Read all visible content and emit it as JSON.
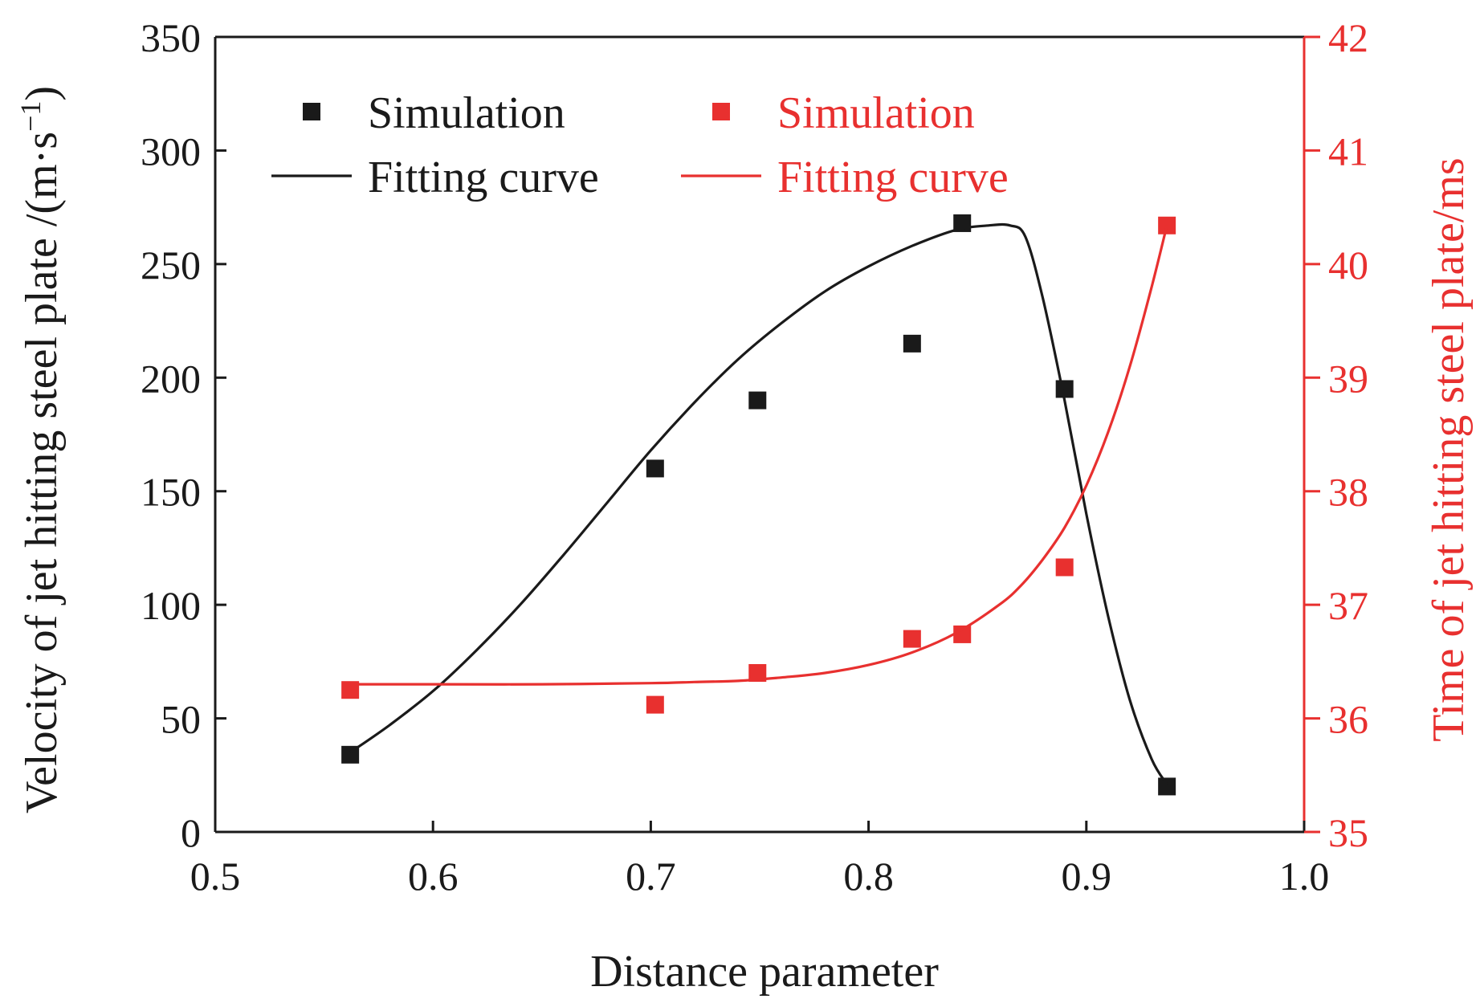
{
  "chart_data": {
    "type": "scatter",
    "title": "",
    "xlabel": "Distance parameter",
    "ylabel": "Velocity of jet hitting steel plate /(m·s",
    "ylabel_sup": "−1",
    "ylabel_close": ")",
    "y2label": "Time of jet hitting steel plate/ms",
    "xlim": [
      0.5,
      1.0
    ],
    "ylim": [
      0,
      350
    ],
    "y2lim": [
      35,
      42
    ],
    "xticks": [
      "0.5",
      "0.6",
      "0.7",
      "0.8",
      "0.9",
      "1.0"
    ],
    "yticks": [
      "0",
      "50",
      "100",
      "150",
      "200",
      "250",
      "300",
      "350"
    ],
    "y2ticks": [
      "35",
      "36",
      "37",
      "38",
      "39",
      "40",
      "41",
      "42"
    ],
    "grid": false,
    "legend_position": "top-left",
    "colors": {
      "velocity": "#1a1a1a",
      "time": "#e8302f"
    },
    "series": [
      {
        "name": "Simulation",
        "axis": "left",
        "kind": "points",
        "color": "#1a1a1a",
        "x": [
          0.562,
          0.702,
          0.749,
          0.82,
          0.843,
          0.89,
          0.937
        ],
        "y": [
          34,
          160,
          190,
          215,
          268,
          195,
          20
        ]
      },
      {
        "name": "Fitting curve",
        "axis": "left",
        "kind": "line",
        "color": "#1a1a1a",
        "x": [
          0.562,
          0.58,
          0.6,
          0.62,
          0.64,
          0.66,
          0.68,
          0.7,
          0.72,
          0.74,
          0.76,
          0.78,
          0.8,
          0.82,
          0.84,
          0.855,
          0.865,
          0.872,
          0.88,
          0.89,
          0.9,
          0.91,
          0.92,
          0.93,
          0.937
        ],
        "y": [
          35,
          47,
          62,
          80,
          100,
          122,
          145,
          168,
          189,
          208,
          224,
          238,
          249,
          258,
          265,
          267,
          267,
          262,
          235,
          190,
          140,
          95,
          58,
          32,
          21
        ]
      },
      {
        "name": "Simulation",
        "axis": "right",
        "kind": "points",
        "color": "#e8302f",
        "x": [
          0.562,
          0.702,
          0.749,
          0.82,
          0.843,
          0.89,
          0.937
        ],
        "y": [
          36.25,
          36.12,
          36.4,
          36.7,
          36.74,
          37.33,
          40.34
        ]
      },
      {
        "name": "Fitting curve",
        "axis": "right",
        "kind": "line",
        "color": "#e8302f",
        "x": [
          0.562,
          0.6,
          0.65,
          0.7,
          0.72,
          0.74,
          0.76,
          0.78,
          0.8,
          0.82,
          0.84,
          0.86,
          0.87,
          0.88,
          0.89,
          0.9,
          0.91,
          0.92,
          0.93,
          0.937
        ],
        "y": [
          36.3,
          36.3,
          36.3,
          36.31,
          36.32,
          36.33,
          36.36,
          36.4,
          36.47,
          36.58,
          36.75,
          37.0,
          37.17,
          37.4,
          37.68,
          38.05,
          38.52,
          39.1,
          39.8,
          40.34
        ]
      }
    ]
  }
}
